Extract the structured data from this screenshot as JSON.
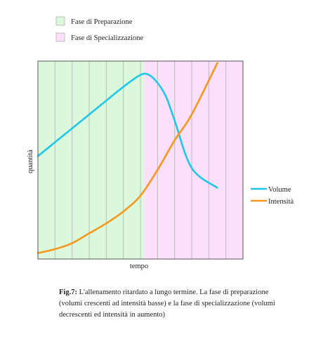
{
  "legend": {
    "phases": [
      {
        "label": "Fase di Preparazione",
        "color": "#dcf8dc"
      },
      {
        "label": "Fase di Specializzazione",
        "color": "#fce0fb"
      }
    ],
    "lines": [
      {
        "label": "Volume",
        "color": "#1ec7e8"
      },
      {
        "label": "Intensità",
        "color": "#f7981d"
      }
    ]
  },
  "caption": {
    "figure_label": "Fig.7:",
    "text": " L'allenamento ritardato a lungo termine. La fase di preparazione (volumi crescenti ad intensità basse) e la fase di specializzazione (volumi decrescenti ed intensità in aumento)"
  },
  "colors": {
    "grid": "#bbbbbb",
    "border": "#555555",
    "preparation_bg": "#dcf8dc",
    "specialization_bg": "#fce0fb"
  },
  "chart_data": {
    "type": "line",
    "xlabel": "tempo",
    "ylabel": "quantità",
    "xlim": [
      0,
      12
    ],
    "ylim": [
      0,
      100
    ],
    "grid": {
      "vertical": true,
      "horizontal": false
    },
    "tick_labels": false,
    "phases": [
      {
        "name": "Fase di Preparazione",
        "x_range": [
          0,
          6.2
        ]
      },
      {
        "name": "Fase di Specializzazione",
        "x_range": [
          6.2,
          12
        ]
      }
    ],
    "series": [
      {
        "name": "Volume",
        "x": [
          0,
          1,
          2,
          3,
          4,
          5,
          6,
          6.5,
          7,
          7.5,
          8,
          9,
          10.5
        ],
        "y": [
          52,
          59,
          66,
          73,
          80,
          87,
          93,
          93,
          89,
          82,
          70,
          46,
          36
        ]
      },
      {
        "name": "Intensità",
        "x": [
          0,
          1,
          2,
          3,
          4,
          5,
          6,
          7,
          8,
          9,
          10.5
        ],
        "y": [
          3,
          5,
          8,
          13,
          18,
          24,
          32,
          45,
          60,
          73,
          99
        ]
      }
    ],
    "legend_position": "top-left (phases), right (lines)"
  }
}
